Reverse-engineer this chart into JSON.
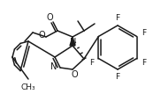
{
  "bg_color": "#ffffff",
  "line_color": "#1a1a1a",
  "line_width": 1.1,
  "font_size": 6.5,
  "figsize": [
    1.82,
    1.07
  ],
  "dpi": 100,
  "xlim": [
    0,
    182
  ],
  "ylim": [
    0,
    107
  ]
}
